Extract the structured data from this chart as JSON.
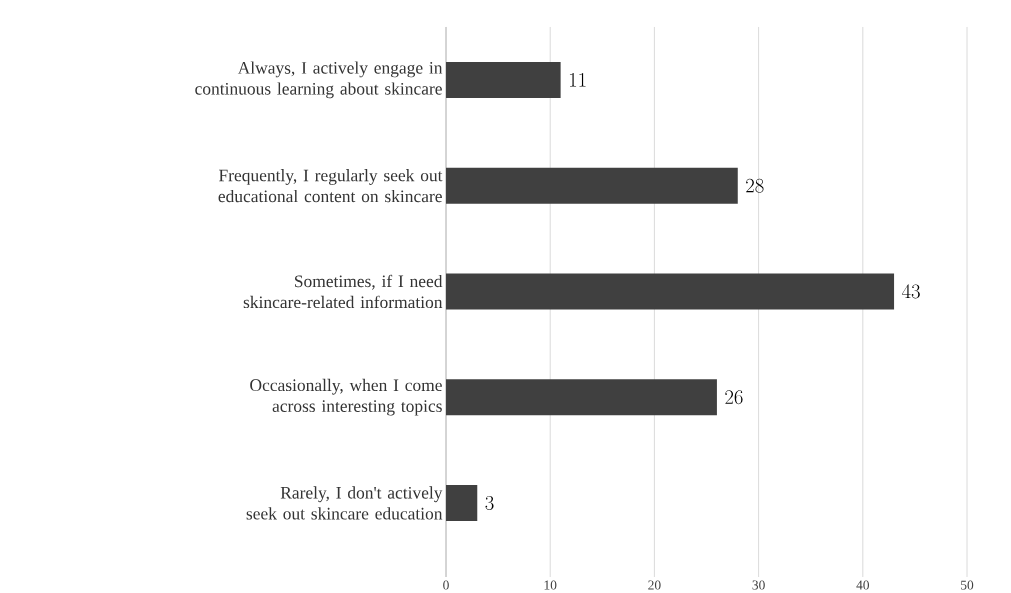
{
  "chart_data": {
    "type": "bar",
    "orientation": "horizontal",
    "categories": [
      "Always, I actively engage in continuous learning about skincare",
      "Frequently, I regularly seek out educational content on skincare",
      "Sometimes, if I need skincare-related information",
      "Occasionally, when I come across interesting topics",
      "Rarely, I don't actively seek out skincare education"
    ],
    "values": [
      11,
      28,
      43,
      26,
      3
    ],
    "color": "#404040",
    "xlim": [
      0,
      50
    ],
    "xticks": [
      0,
      10,
      20,
      30,
      40,
      50
    ],
    "grid": "x",
    "data_labels": true
  }
}
